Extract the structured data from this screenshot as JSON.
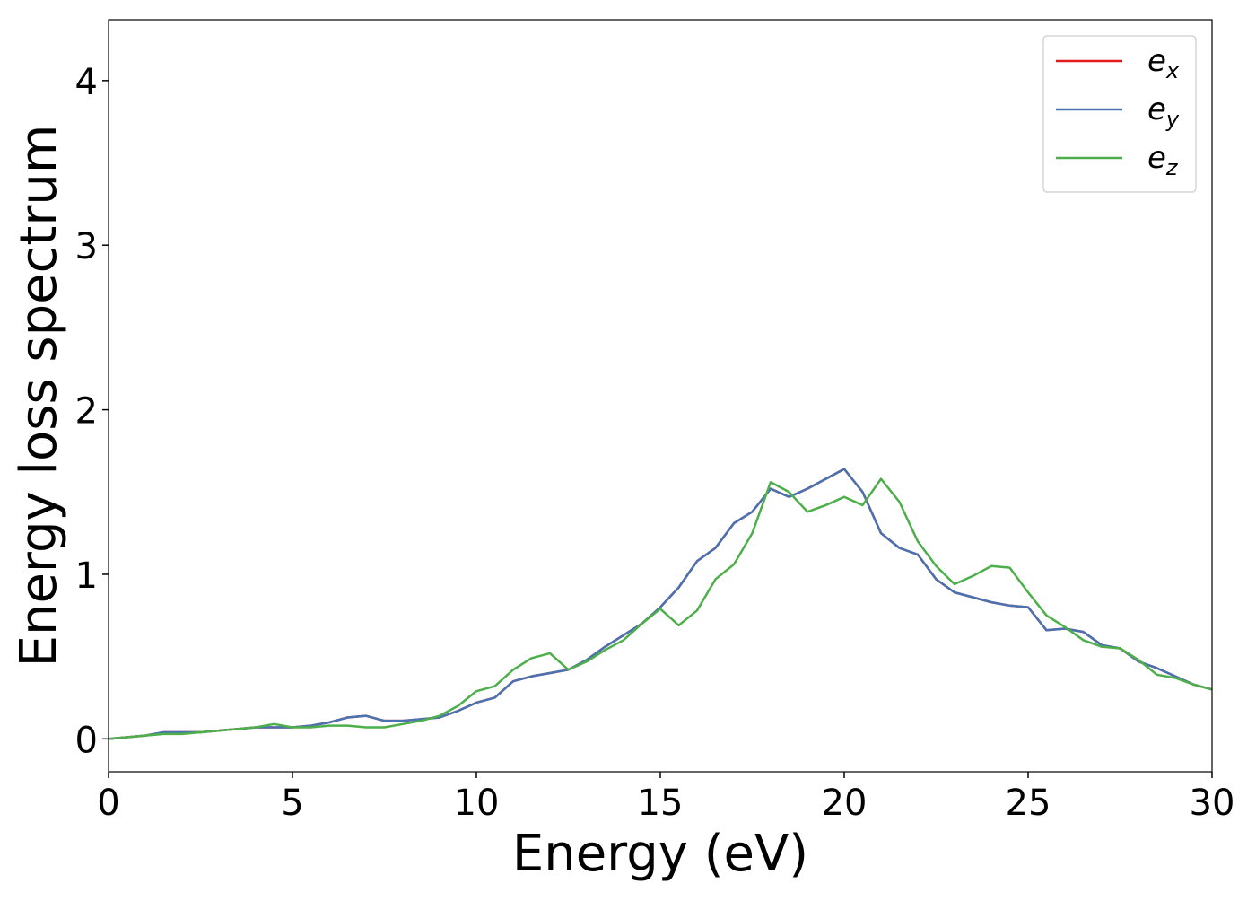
{
  "chart_data": {
    "type": "line",
    "xlabel": "Energy (eV)",
    "ylabel": "Energy loss spectrum",
    "x": [
      0,
      0.5,
      1,
      1.5,
      2,
      2.5,
      3,
      3.5,
      4,
      4.5,
      5,
      5.5,
      6,
      6.5,
      7,
      7.5,
      8,
      8.5,
      9,
      9.5,
      10,
      10.5,
      11,
      11.5,
      12,
      12.5,
      13,
      13.5,
      14,
      14.5,
      15,
      15.5,
      16,
      16.5,
      17,
      17.5,
      18,
      18.5,
      19,
      19.5,
      20,
      20.5,
      21,
      21.5,
      22,
      22.5,
      23,
      23.5,
      24,
      24.5,
      25,
      25.5,
      26,
      26.5,
      27,
      27.5,
      28,
      28.5,
      29,
      29.5,
      30
    ],
    "series": [
      {
        "name": "e_x",
        "color": "#e41a1c",
        "values": [
          0,
          0.01,
          0.02,
          0.04,
          0.04,
          0.04,
          0.05,
          0.06,
          0.07,
          0.07,
          0.07,
          0.08,
          0.1,
          0.13,
          0.14,
          0.11,
          0.11,
          0.12,
          0.13,
          0.17,
          0.22,
          0.25,
          0.35,
          0.38,
          0.4,
          0.42,
          0.48,
          0.56,
          0.63,
          0.7,
          0.8,
          0.92,
          1.08,
          1.16,
          1.31,
          1.38,
          1.52,
          1.47,
          1.52,
          1.58,
          1.64,
          1.5,
          1.25,
          1.16,
          1.12,
          0.97,
          0.89,
          0.86,
          0.83,
          0.81,
          0.8,
          0.66,
          0.67,
          0.65,
          0.57,
          0.55,
          0.47,
          0.43,
          0.38,
          0.33,
          0.3
        ]
      },
      {
        "name": "e_y",
        "color": "#4872b0",
        "values": [
          0,
          0.01,
          0.02,
          0.04,
          0.04,
          0.04,
          0.05,
          0.06,
          0.07,
          0.07,
          0.07,
          0.08,
          0.1,
          0.13,
          0.14,
          0.11,
          0.11,
          0.12,
          0.13,
          0.17,
          0.22,
          0.25,
          0.35,
          0.38,
          0.4,
          0.42,
          0.48,
          0.56,
          0.63,
          0.7,
          0.8,
          0.92,
          1.08,
          1.16,
          1.31,
          1.38,
          1.52,
          1.47,
          1.52,
          1.58,
          1.64,
          1.5,
          1.25,
          1.16,
          1.12,
          0.97,
          0.89,
          0.86,
          0.83,
          0.81,
          0.8,
          0.66,
          0.67,
          0.65,
          0.57,
          0.55,
          0.47,
          0.43,
          0.38,
          0.33,
          0.3
        ]
      },
      {
        "name": "e_z",
        "color": "#4daf4a",
        "values": [
          0,
          0.01,
          0.02,
          0.03,
          0.03,
          0.04,
          0.05,
          0.06,
          0.07,
          0.09,
          0.07,
          0.07,
          0.08,
          0.08,
          0.07,
          0.07,
          0.09,
          0.11,
          0.14,
          0.2,
          0.29,
          0.32,
          0.42,
          0.49,
          0.52,
          0.42,
          0.47,
          0.54,
          0.6,
          0.7,
          0.79,
          0.69,
          0.78,
          0.97,
          1.06,
          1.25,
          1.56,
          1.5,
          1.38,
          1.42,
          1.47,
          1.42,
          1.58,
          1.44,
          1.2,
          1.05,
          0.94,
          0.99,
          1.05,
          1.04,
          0.89,
          0.75,
          0.68,
          0.6,
          0.56,
          0.55,
          0.48,
          0.39,
          0.37,
          0.33,
          0.3
        ]
      }
    ],
    "xlim": [
      0,
      30
    ],
    "xticks": [
      0,
      5,
      10,
      15,
      20,
      25,
      30
    ],
    "ylim": [
      -0.2,
      4.37
    ],
    "yticks": [
      0,
      1,
      2,
      3,
      4
    ],
    "legend": "upper right"
  }
}
